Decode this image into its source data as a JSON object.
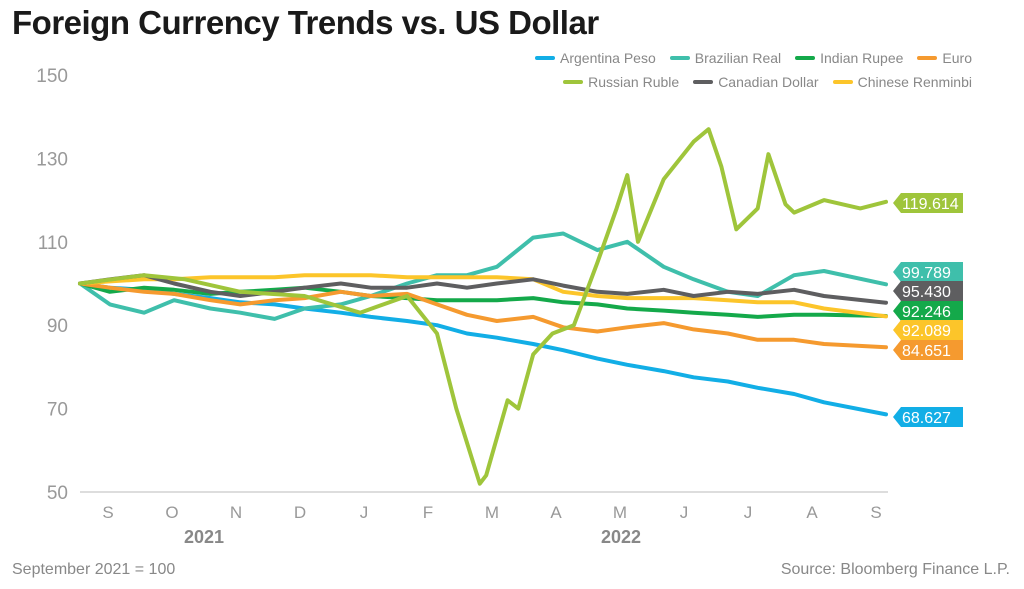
{
  "chart_data": {
    "type": "line",
    "title": "Foreign Currency Trends vs. US Dollar",
    "note": "September 2021 = 100",
    "source": "Source: Bloomberg Finance L.P.",
    "ylim": [
      50,
      150
    ],
    "yticks": [
      50,
      70,
      90,
      110,
      130,
      150
    ],
    "xlim": [
      "2021-09-01",
      "2022-09-13"
    ],
    "xtick_labels": [
      "S",
      "O",
      "N",
      "D",
      "J",
      "F",
      "M",
      "A",
      "M",
      "J",
      "J",
      "A",
      "S"
    ],
    "year_labels": [
      "2021",
      "2022"
    ],
    "grid": false,
    "legend_position": "top-right",
    "x": [
      "2021-09-01",
      "2021-09-15",
      "2021-10-01",
      "2021-10-15",
      "2021-11-01",
      "2021-11-15",
      "2021-12-01",
      "2021-12-15",
      "2022-01-01",
      "2022-01-15",
      "2022-02-01",
      "2022-02-15",
      "2022-03-01",
      "2022-03-15",
      "2022-04-01",
      "2022-04-15",
      "2022-05-01",
      "2022-05-15",
      "2022-06-01",
      "2022-06-15",
      "2022-07-01",
      "2022-07-15",
      "2022-08-01",
      "2022-08-15",
      "2022-09-13"
    ],
    "series": [
      {
        "name": "Argentina Peso",
        "color": "#12aee6",
        "end_label": "68.627",
        "values": [
          100,
          99,
          98.5,
          97.5,
          96.5,
          95.5,
          95,
          94,
          93,
          92,
          91,
          90,
          88,
          87,
          85.5,
          84,
          82,
          80.5,
          79,
          77.5,
          76.5,
          75,
          73.5,
          71.5,
          68.6
        ]
      },
      {
        "name": "Brazilian Real",
        "color": "#3fbfab",
        "end_label": "99.789",
        "values": [
          100,
          95,
          93,
          96,
          94,
          93,
          91.5,
          94,
          95,
          97,
          100,
          102,
          102,
          104,
          111,
          112,
          108,
          110,
          104,
          101,
          98,
          97,
          102,
          103,
          99.8
        ]
      },
      {
        "name": "Indian Rupee",
        "color": "#14a94a",
        "end_label": "92.246",
        "values": [
          100,
          98,
          99,
          98.5,
          97.5,
          98,
          98.5,
          99,
          98,
          97,
          96.5,
          96,
          96,
          96,
          96.5,
          95.5,
          95,
          94,
          93.5,
          93,
          92.5,
          92,
          92.5,
          92.5,
          92.2
        ]
      },
      {
        "name": "Euro",
        "color": "#f59a2f",
        "end_label": "84.651",
        "values": [
          100,
          99,
          98,
          97.5,
          96,
          95,
          96,
          96.5,
          98,
          97,
          97.5,
          95,
          92.5,
          91,
          92,
          89.5,
          88.5,
          89.5,
          90.5,
          89,
          88,
          86.5,
          86.5,
          85.5,
          84.7
        ]
      },
      {
        "name": "Russian Ruble",
        "color": "#9fc53b",
        "end_label": "119.614",
        "x": [
          "2021-09-01",
          "2021-10-01",
          "2021-10-20",
          "2021-11-15",
          "2021-12-15",
          "2022-01-10",
          "2022-02-01",
          "2022-02-15",
          "2022-02-24",
          "2022-03-07",
          "2022-03-10",
          "2022-03-20",
          "2022-03-25",
          "2022-04-01",
          "2022-04-10",
          "2022-04-20",
          "2022-05-01",
          "2022-05-10",
          "2022-05-15",
          "2022-05-20",
          "2022-06-01",
          "2022-06-15",
          "2022-06-22",
          "2022-06-28",
          "2022-07-05",
          "2022-07-15",
          "2022-07-20",
          "2022-07-28",
          "2022-08-01",
          "2022-08-15",
          "2022-09-01",
          "2022-09-13"
        ],
        "values": [
          100,
          102,
          101,
          98,
          97,
          93,
          97,
          88,
          70,
          52,
          54,
          72,
          70,
          83,
          88,
          90,
          105,
          118,
          126,
          110,
          125,
          134,
          137,
          128,
          113,
          118,
          131,
          119,
          117,
          120,
          118,
          119.6
        ]
      },
      {
        "name": "Canadian Dollar",
        "color": "#5e5e60",
        "end_label": "95.430",
        "values": [
          100,
          101,
          102,
          100,
          98,
          97,
          98,
          99,
          100,
          99,
          99,
          100,
          99,
          100,
          101,
          99.5,
          98,
          97.5,
          98.5,
          97,
          98,
          97.5,
          98.5,
          97,
          95.4
        ]
      },
      {
        "name": "Chinese Renminbi",
        "color": "#fcc52a",
        "end_label": "92.089",
        "values": [
          100,
          100.5,
          101,
          101,
          101.5,
          101.5,
          101.5,
          102,
          102,
          102,
          101.5,
          101.5,
          101.5,
          101.5,
          101,
          98,
          97,
          96.5,
          96.5,
          96.5,
          96,
          95.5,
          95.5,
          94,
          92.1
        ]
      }
    ],
    "end_label_order": [
      "Russian Ruble",
      "Brazilian Real",
      "Canadian Dollar",
      "Indian Rupee",
      "Chinese Renminbi",
      "Euro",
      "Argentina Peso"
    ]
  }
}
